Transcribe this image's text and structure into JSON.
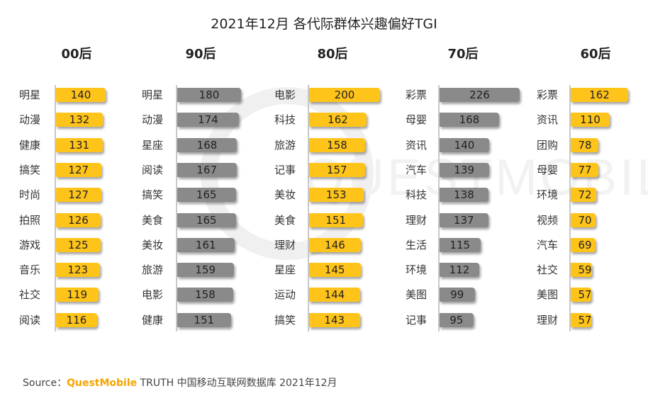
{
  "chart_data": {
    "type": "bar",
    "orientation": "horizontal",
    "title": "2021年12月 各代际群体兴趣偏好TGI",
    "groups": [
      {
        "name": "00后",
        "color": "#ffc41a",
        "categories": [
          "明星",
          "动漫",
          "健康",
          "搞笑",
          "时尚",
          "拍照",
          "游戏",
          "音乐",
          "社交",
          "阅读"
        ],
        "values": [
          140,
          132,
          131,
          127,
          127,
          126,
          125,
          123,
          119,
          116
        ]
      },
      {
        "name": "90后",
        "color": "#8a8a8a",
        "categories": [
          "明星",
          "动漫",
          "星座",
          "阅读",
          "搞笑",
          "美食",
          "美妆",
          "旅游",
          "电影",
          "健康"
        ],
        "values": [
          180,
          174,
          168,
          167,
          165,
          165,
          161,
          159,
          158,
          151
        ]
      },
      {
        "name": "80后",
        "color": "#ffc41a",
        "categories": [
          "电影",
          "科技",
          "旅游",
          "记事",
          "美妆",
          "美食",
          "理财",
          "星座",
          "运动",
          "搞笑"
        ],
        "values": [
          200,
          162,
          158,
          157,
          153,
          151,
          146,
          145,
          144,
          143
        ]
      },
      {
        "name": "70后",
        "color": "#8a8a8a",
        "categories": [
          "彩票",
          "母婴",
          "资讯",
          "汽车",
          "科技",
          "理财",
          "生活",
          "环境",
          "美图",
          "记事"
        ],
        "values": [
          226,
          168,
          140,
          139,
          138,
          137,
          115,
          112,
          99,
          95
        ]
      },
      {
        "name": "60后",
        "color": "#ffc41a",
        "categories": [
          "彩票",
          "资讯",
          "团购",
          "母婴",
          "环境",
          "视频",
          "汽车",
          "社交",
          "美图",
          "理财"
        ],
        "values": [
          162,
          110,
          78,
          77,
          72,
          70,
          69,
          59,
          57,
          57
        ]
      }
    ]
  },
  "source": {
    "prefix": "Source：",
    "brand": "QuestMobile",
    "suffix": " TRUTH 中国移动互联网数据库 2021年12月"
  },
  "watermark": "QUESTMOBILE"
}
